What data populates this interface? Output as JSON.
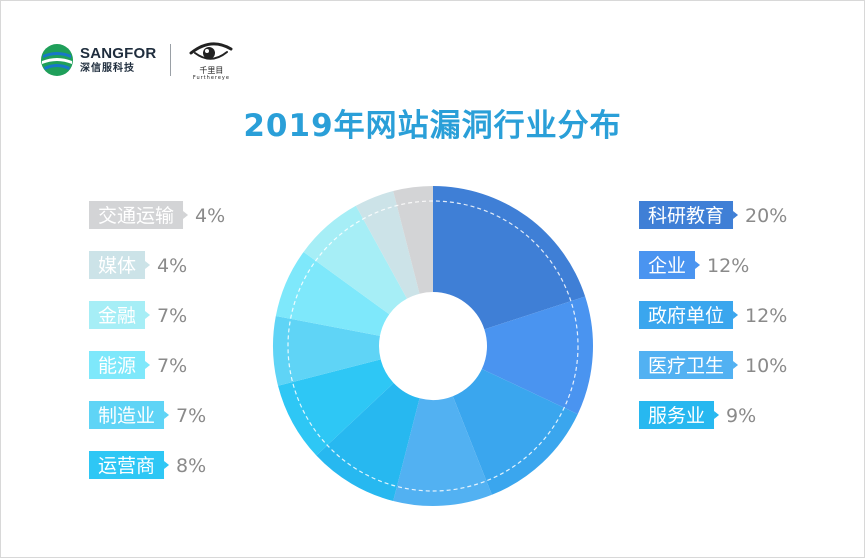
{
  "header": {
    "sangfor_name": "SANGFOR",
    "sangfor_cn": "深信服科技",
    "eye_cn": "千里目",
    "eye_en": "Furthereye"
  },
  "chart_data": {
    "type": "pie",
    "title": "2019年网站漏洞行业分布",
    "donut": true,
    "legend_placement": "left-and-right",
    "slices": [
      {
        "label": "科研教育",
        "value": 20,
        "display": "20%",
        "color": "#3f7fd6",
        "side": "right"
      },
      {
        "label": "企业",
        "value": 12,
        "display": "12%",
        "color": "#4a94f0",
        "side": "right"
      },
      {
        "label": "政府单位",
        "value": 12,
        "display": "12%",
        "color": "#3aa6ee",
        "side": "right"
      },
      {
        "label": "医疗卫生",
        "value": 10,
        "display": "10%",
        "color": "#52b1f2",
        "side": "right"
      },
      {
        "label": "服务业",
        "value": 9,
        "display": "9%",
        "color": "#27b8f0",
        "side": "right"
      },
      {
        "label": "运营商",
        "value": 8,
        "display": "8%",
        "color": "#2ec7f5",
        "side": "left"
      },
      {
        "label": "制造业",
        "value": 7,
        "display": "7%",
        "color": "#5fd4f6",
        "side": "left"
      },
      {
        "label": "能源",
        "value": 7,
        "display": "7%",
        "color": "#7ee8fb",
        "side": "left"
      },
      {
        "label": "金融",
        "value": 7,
        "display": "7%",
        "color": "#a6eef6",
        "side": "left"
      },
      {
        "label": "媒体",
        "value": 4,
        "display": "4%",
        "color": "#cce3e8",
        "side": "left"
      },
      {
        "label": "交通运输",
        "value": 4,
        "display": "4%",
        "color": "#d3d4d6",
        "side": "left"
      }
    ]
  }
}
